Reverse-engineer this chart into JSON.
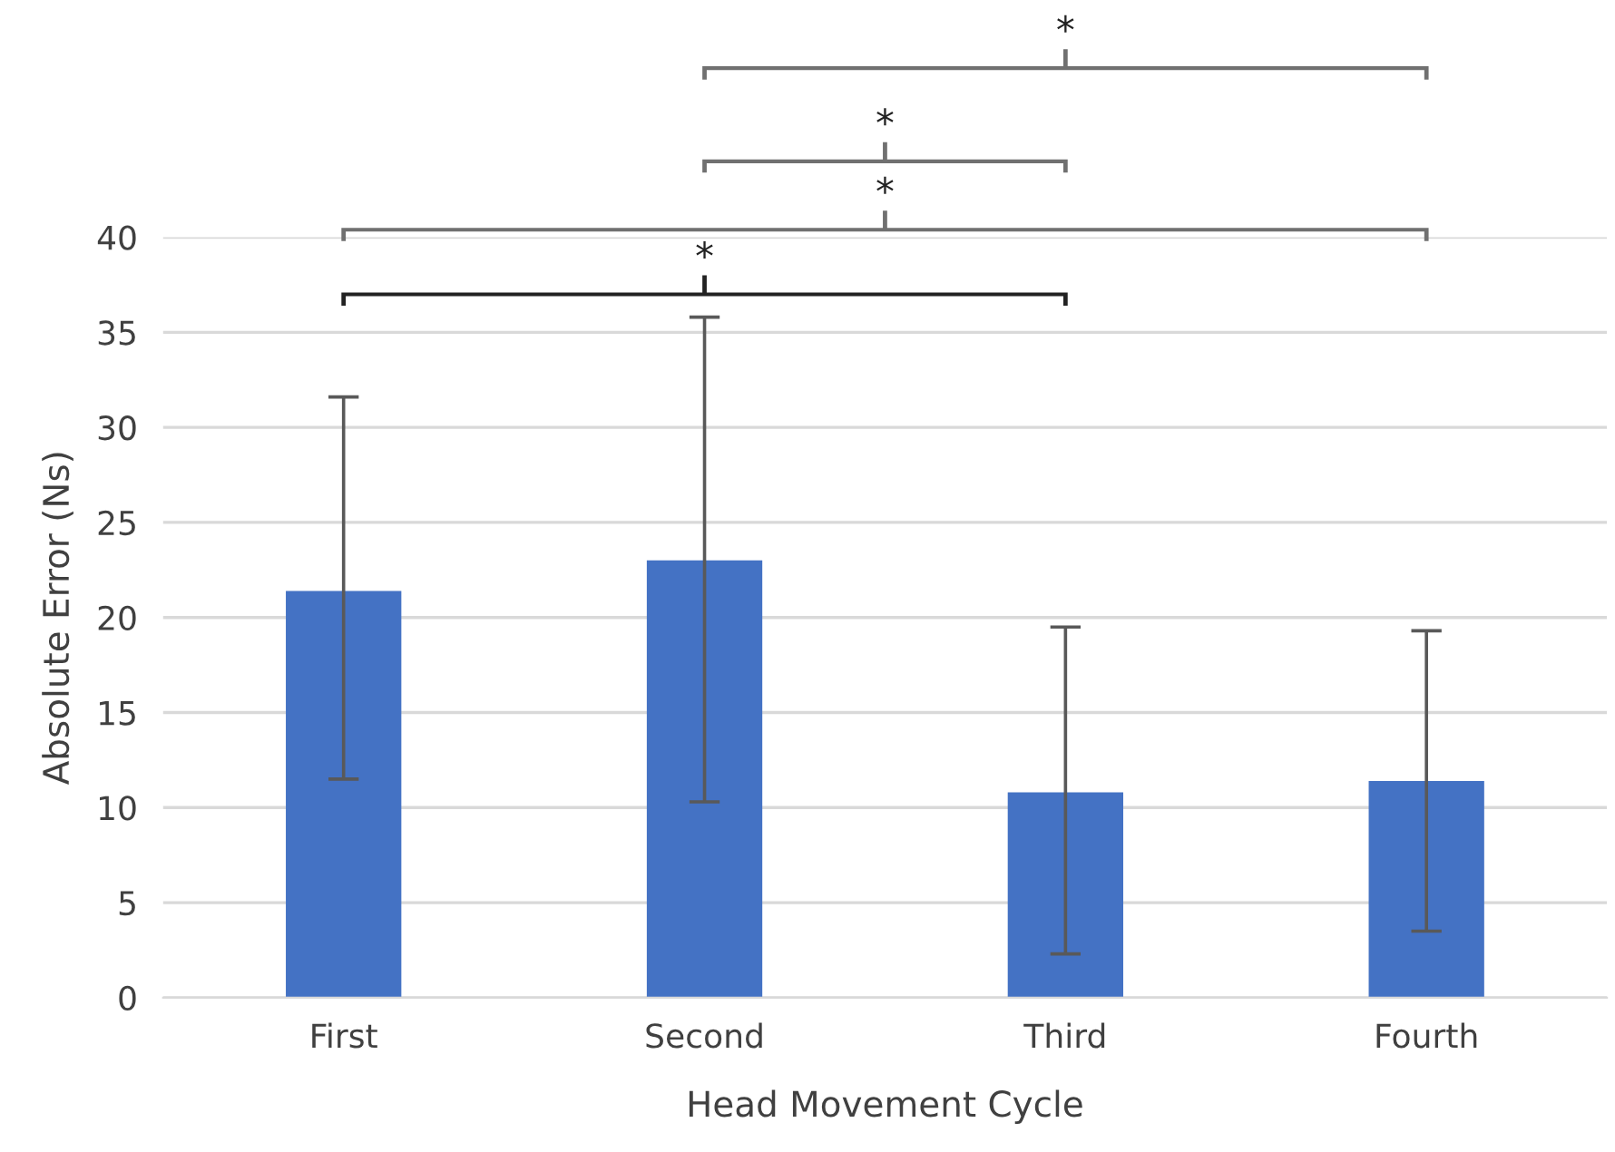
{
  "chart_data": {
    "type": "bar",
    "xlabel": "Head Movement Cycle",
    "ylabel": "Absolute Error (Ns)",
    "categories": [
      "First",
      "Second",
      "Third",
      "Fourth"
    ],
    "values": [
      21.4,
      23.0,
      10.8,
      11.4
    ],
    "errors": [
      [
        11.5,
        31.6
      ],
      [
        10.3,
        35.8
      ],
      [
        2.3,
        19.5
      ],
      [
        3.5,
        19.3
      ]
    ],
    "color": "#4472c4",
    "ylim": [
      0,
      40
    ],
    "yticks": [
      0,
      5,
      10,
      15,
      20,
      25,
      30,
      35,
      40
    ],
    "grid": "y",
    "annotations": [
      "*",
      "*",
      "*",
      "*"
    ]
  }
}
